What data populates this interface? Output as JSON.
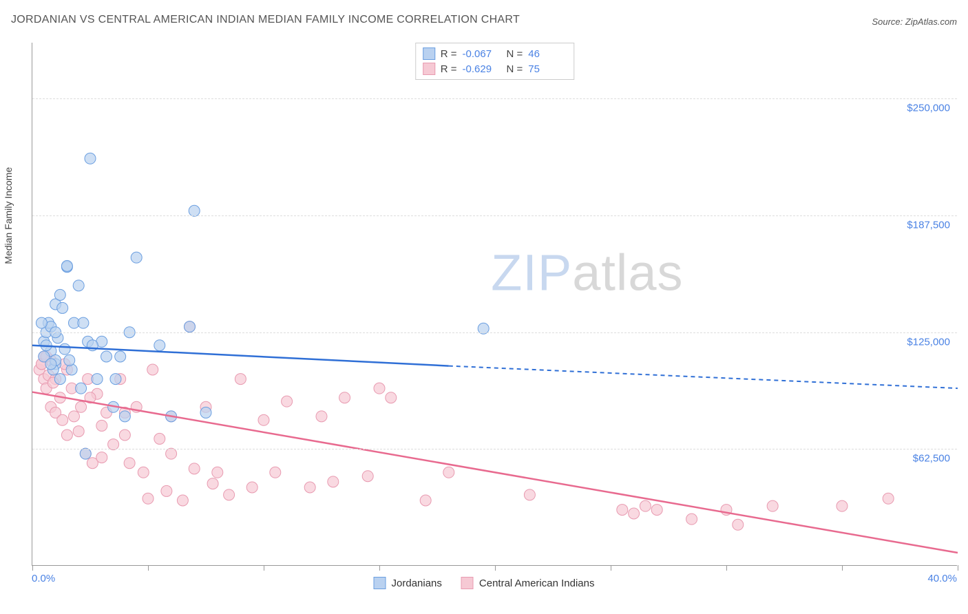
{
  "title": "JORDANIAN VS CENTRAL AMERICAN INDIAN MEDIAN FAMILY INCOME CORRELATION CHART",
  "source": "Source: ZipAtlas.com",
  "ylabel": "Median Family Income",
  "watermark_zip": "ZIP",
  "watermark_atlas": "atlas",
  "chart": {
    "type": "scatter",
    "xlim": [
      0,
      40
    ],
    "ylim": [
      0,
      280000
    ],
    "xtick_min_label": "0.0%",
    "xtick_max_label": "40.0%",
    "xtick_positions": [
      0,
      5,
      10,
      15,
      20,
      25,
      30,
      35,
      40
    ],
    "ytick_positions": [
      62500,
      125000,
      187500,
      250000
    ],
    "ytick_labels": [
      "$62,500",
      "$125,000",
      "$187,500",
      "$250,000"
    ],
    "grid_color": "#dddddd",
    "background_color": "#ffffff",
    "axis_color": "#999999",
    "tick_label_color": "#4a82e4",
    "series": [
      {
        "name": "Jordanians",
        "marker_fill": "#b9d1f0",
        "marker_stroke": "#6a9ee0",
        "line_color": "#2f6fd6",
        "swatch_fill": "#b9d1f0",
        "swatch_border": "#6a9ee0",
        "r_value": "-0.067",
        "n_value": "46",
        "marker_radius": 8,
        "trendline": {
          "x1": 0,
          "y1": 118000,
          "x2": 18,
          "y2": 107000,
          "dash_from_x": 18,
          "dash_to_x": 40,
          "dash_y2": 95000
        },
        "points": [
          [
            0.5,
            120000
          ],
          [
            0.6,
            125000
          ],
          [
            0.7,
            130000
          ],
          [
            0.8,
            128000
          ],
          [
            0.8,
            115000
          ],
          [
            1.0,
            140000
          ],
          [
            1.0,
            108000
          ],
          [
            1.1,
            122000
          ],
          [
            1.2,
            145000
          ],
          [
            1.2,
            100000
          ],
          [
            1.4,
            116000
          ],
          [
            1.5,
            160000
          ],
          [
            1.5,
            160500
          ],
          [
            1.7,
            105000
          ],
          [
            1.8,
            130000
          ],
          [
            0.9,
            105000
          ],
          [
            1.0,
            110000
          ],
          [
            2.0,
            150000
          ],
          [
            2.1,
            95000
          ],
          [
            2.2,
            130000
          ],
          [
            2.3,
            60000
          ],
          [
            2.5,
            218000
          ],
          [
            2.8,
            100000
          ],
          [
            3.0,
            120000
          ],
          [
            3.2,
            112000
          ],
          [
            3.5,
            85000
          ],
          [
            3.6,
            100000
          ],
          [
            3.8,
            112000
          ],
          [
            4.0,
            80000
          ],
          [
            4.2,
            125000
          ],
          [
            4.5,
            165000
          ],
          [
            5.5,
            118000
          ],
          [
            6.0,
            80000
          ],
          [
            6.8,
            128000
          ],
          [
            7.0,
            190000
          ],
          [
            0.4,
            130000
          ],
          [
            0.5,
            112000
          ],
          [
            0.6,
            118000
          ],
          [
            0.8,
            108000
          ],
          [
            1.0,
            125000
          ],
          [
            1.3,
            138000
          ],
          [
            1.6,
            110000
          ],
          [
            2.4,
            120000
          ],
          [
            2.6,
            118000
          ],
          [
            19.5,
            127000
          ],
          [
            7.5,
            82000
          ]
        ]
      },
      {
        "name": "Central American Indians",
        "marker_fill": "#f6c9d4",
        "marker_stroke": "#e89ab0",
        "line_color": "#e86a8f",
        "swatch_fill": "#f6c9d4",
        "swatch_border": "#e89ab0",
        "r_value": "-0.629",
        "n_value": "75",
        "marker_radius": 8,
        "trendline": {
          "x1": 0,
          "y1": 93000,
          "x2": 40,
          "y2": 7000,
          "dash_from_x": null
        },
        "points": [
          [
            0.3,
            105000
          ],
          [
            0.4,
            108000
          ],
          [
            0.5,
            100000
          ],
          [
            0.5,
            112000
          ],
          [
            0.6,
            95000
          ],
          [
            0.7,
            102000
          ],
          [
            0.8,
            85000
          ],
          [
            0.8,
            110000
          ],
          [
            1.0,
            82000
          ],
          [
            1.0,
            100000
          ],
          [
            1.2,
            90000
          ],
          [
            1.3,
            78000
          ],
          [
            1.5,
            105000
          ],
          [
            1.5,
            70000
          ],
          [
            1.7,
            95000
          ],
          [
            1.8,
            80000
          ],
          [
            2.0,
            72000
          ],
          [
            2.1,
            85000
          ],
          [
            2.3,
            60000
          ],
          [
            2.4,
            100000
          ],
          [
            2.6,
            55000
          ],
          [
            2.8,
            92000
          ],
          [
            3.0,
            75000
          ],
          [
            3.0,
            58000
          ],
          [
            3.2,
            82000
          ],
          [
            3.5,
            65000
          ],
          [
            3.8,
            100000
          ],
          [
            4.0,
            70000
          ],
          [
            4.2,
            55000
          ],
          [
            4.5,
            85000
          ],
          [
            4.8,
            50000
          ],
          [
            5.0,
            36000
          ],
          [
            5.2,
            105000
          ],
          [
            5.5,
            68000
          ],
          [
            5.8,
            40000
          ],
          [
            6.0,
            80000
          ],
          [
            6.5,
            35000
          ],
          [
            6.8,
            128000
          ],
          [
            7.0,
            52000
          ],
          [
            7.5,
            85000
          ],
          [
            7.8,
            44000
          ],
          [
            8.0,
            50000
          ],
          [
            8.5,
            38000
          ],
          [
            9.0,
            100000
          ],
          [
            9.5,
            42000
          ],
          [
            10.0,
            78000
          ],
          [
            10.5,
            50000
          ],
          [
            11.0,
            88000
          ],
          [
            12.0,
            42000
          ],
          [
            12.5,
            80000
          ],
          [
            13.0,
            45000
          ],
          [
            13.5,
            90000
          ],
          [
            14.5,
            48000
          ],
          [
            15.0,
            95000
          ],
          [
            15.5,
            90000
          ],
          [
            17.0,
            35000
          ],
          [
            18.0,
            50000
          ],
          [
            21.5,
            38000
          ],
          [
            25.5,
            30000
          ],
          [
            26.0,
            28000
          ],
          [
            26.5,
            32000
          ],
          [
            27.0,
            30000
          ],
          [
            28.5,
            25000
          ],
          [
            30.0,
            30000
          ],
          [
            30.5,
            22000
          ],
          [
            32.0,
            32000
          ],
          [
            35.0,
            32000
          ],
          [
            37.0,
            36000
          ],
          [
            0.4,
            108000
          ],
          [
            0.6,
            112000
          ],
          [
            0.9,
            98000
          ],
          [
            1.4,
            108000
          ],
          [
            2.5,
            90000
          ],
          [
            4.0,
            82000
          ],
          [
            6.0,
            60000
          ]
        ]
      }
    ],
    "legend_bottom": [
      {
        "label": "Jordanians",
        "fill": "#b9d1f0",
        "border": "#6a9ee0"
      },
      {
        "label": "Central American Indians",
        "fill": "#f6c9d4",
        "border": "#e89ab0"
      }
    ]
  },
  "stats_prefix_r": "R =",
  "stats_prefix_n": "N ="
}
